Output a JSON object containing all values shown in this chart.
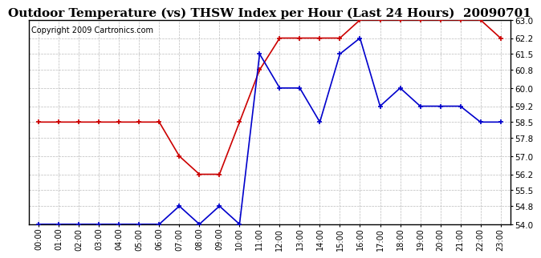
{
  "title": "Outdoor Temperature (vs) THSW Index per Hour (Last 24 Hours)  20090701",
  "copyright": "Copyright 2009 Cartronics.com",
  "hours": [
    "00:00",
    "01:00",
    "02:00",
    "03:00",
    "04:00",
    "05:00",
    "06:00",
    "07:00",
    "08:00",
    "09:00",
    "10:00",
    "11:00",
    "12:00",
    "13:00",
    "14:00",
    "15:00",
    "16:00",
    "17:00",
    "18:00",
    "19:00",
    "20:00",
    "21:00",
    "22:00",
    "23:00"
  ],
  "blue_line": [
    54.0,
    54.0,
    54.0,
    54.0,
    54.0,
    54.0,
    54.0,
    54.8,
    54.0,
    54.8,
    54.0,
    61.5,
    60.0,
    60.0,
    58.5,
    61.5,
    62.2,
    59.2,
    60.0,
    59.2,
    59.2,
    59.2,
    58.5,
    58.5
  ],
  "red_line": [
    58.5,
    58.5,
    58.5,
    58.5,
    58.5,
    58.5,
    58.5,
    57.0,
    56.2,
    56.2,
    58.5,
    60.8,
    62.2,
    62.2,
    62.2,
    62.2,
    63.0,
    63.0,
    63.0,
    63.0,
    63.0,
    63.0,
    63.0,
    62.2
  ],
  "ylim": [
    54.0,
    63.0
  ],
  "yticks": [
    54.0,
    54.8,
    55.5,
    56.2,
    57.0,
    57.8,
    58.5,
    59.2,
    60.0,
    60.8,
    61.5,
    62.2,
    63.0
  ],
  "blue_color": "#0000cc",
  "red_color": "#cc0000",
  "bg_color": "#ffffff",
  "grid_color": "#bbbbbb",
  "title_fontsize": 11,
  "copyright_fontsize": 7
}
